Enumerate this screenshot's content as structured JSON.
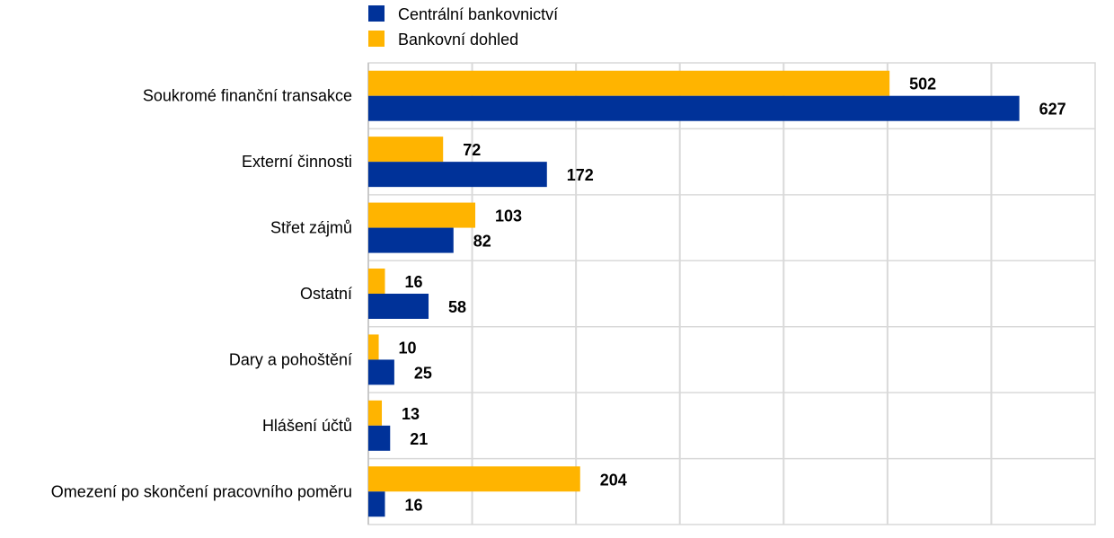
{
  "chart_data": {
    "type": "bar",
    "orientation": "horizontal",
    "categories": [
      "Soukromé finanční transakce",
      "Externí činnosti",
      "Střet zájmů",
      "Ostatní",
      "Dary a pohoštění",
      "Hlášení účtů",
      "Omezení po skončení pracovního poměru"
    ],
    "series": [
      {
        "name": "Centrální bankovnictví",
        "color": "#003299",
        "values": [
          627,
          172,
          82,
          58,
          25,
          21,
          16
        ]
      },
      {
        "name": "Bankovní dohled",
        "color": "#FFB400",
        "values": [
          502,
          72,
          103,
          16,
          10,
          13,
          204
        ]
      }
    ],
    "xlim": [
      0,
      700
    ],
    "grid": true,
    "legend_position": "top",
    "title": "",
    "xlabel": "",
    "ylabel": ""
  }
}
